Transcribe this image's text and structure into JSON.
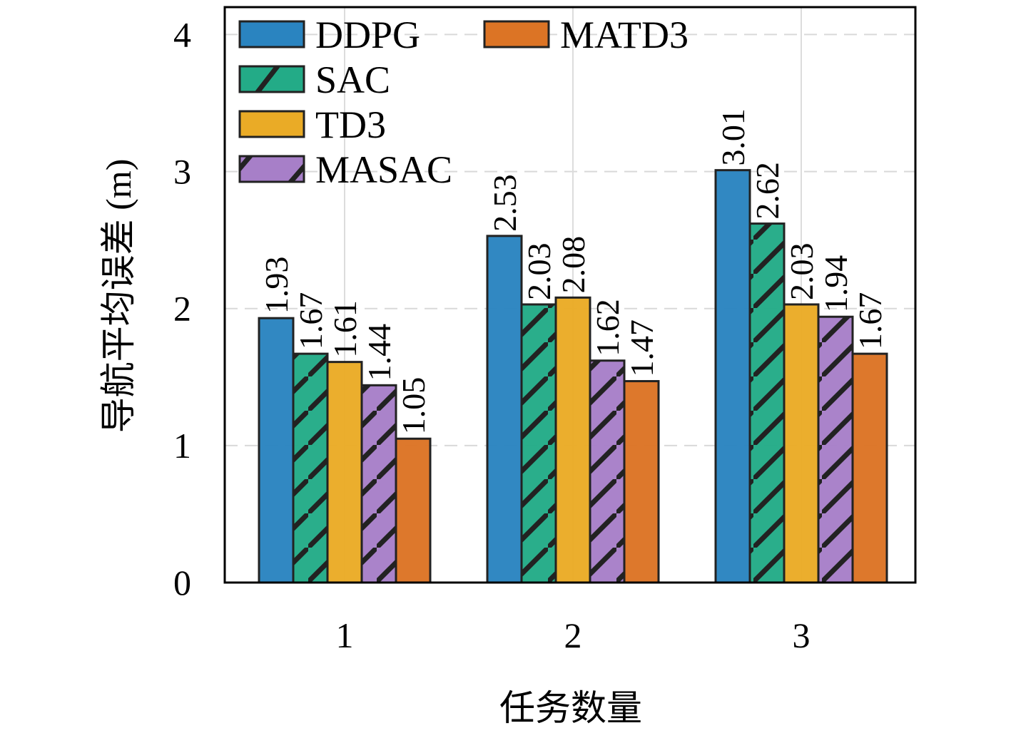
{
  "chart_data": {
    "type": "bar",
    "title": "",
    "xlabel": "任务数量",
    "ylabel": "导航平均误差 (m)",
    "categories": [
      "1",
      "2",
      "3"
    ],
    "series": [
      {
        "name": "DDPG",
        "values": [
          1.93,
          2.53,
          3.01
        ],
        "color": "#2a84c0",
        "hatch": false
      },
      {
        "name": "SAC",
        "values": [
          1.67,
          2.03,
          2.62
        ],
        "color": "#23ab87",
        "hatch": true
      },
      {
        "name": "TD3",
        "values": [
          1.61,
          2.08,
          2.03
        ],
        "color": "#eaab26",
        "hatch": false
      },
      {
        "name": "MASAC",
        "values": [
          1.44,
          1.62,
          1.94
        ],
        "color": "#a77fc8",
        "hatch": true
      },
      {
        "name": "MATD3",
        "values": [
          1.05,
          1.47,
          1.67
        ],
        "color": "#dc7425",
        "hatch": false
      }
    ],
    "ylim": [
      0,
      4.2
    ],
    "yticks": [
      "0",
      "1",
      "2",
      "3",
      "4"
    ],
    "grid": true,
    "legend": {
      "placement": "top-left",
      "columns": 2
    },
    "data_labels": "rotated-vertical"
  }
}
